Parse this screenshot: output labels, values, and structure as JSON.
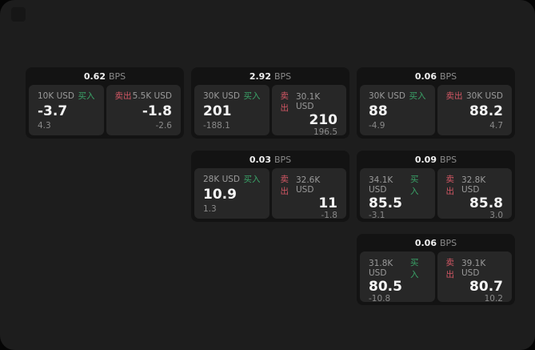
{
  "labels": {
    "bps": "BPS",
    "buy": "买入",
    "sell": "卖出"
  },
  "colors": {
    "window_bg": "#1d1d1d",
    "card_bg": "#131313",
    "panel_bg": "#272727",
    "buy_accent": "#3aa368",
    "sell_accent": "#d25764",
    "primary_text": "#f5f5f5",
    "secondary_text": "#8a8a8a"
  },
  "cards": [
    {
      "bps": "0.62",
      "buy": {
        "notional": "10K USD",
        "price": "-3.7",
        "delta": "4.3"
      },
      "sell": {
        "notional": "5.5K USD",
        "price": "-1.8",
        "delta": "-2.6"
      }
    },
    {
      "bps": "2.92",
      "buy": {
        "notional": "30K USD",
        "price": "201",
        "delta": "-188.1"
      },
      "sell": {
        "notional": "30.1K USD",
        "price": "210",
        "delta": "196.5"
      }
    },
    {
      "bps": "0.06",
      "buy": {
        "notional": "30K USD",
        "price": "88",
        "delta": "-4.9"
      },
      "sell": {
        "notional": "30K USD",
        "price": "88.2",
        "delta": "4.7"
      }
    },
    {
      "bps": "0.03",
      "buy": {
        "notional": "28K USD",
        "price": "10.9",
        "delta": "1.3"
      },
      "sell": {
        "notional": "32.6K USD",
        "price": "11",
        "delta": "-1.8"
      }
    },
    {
      "bps": "0.09",
      "buy": {
        "notional": "34.1K USD",
        "price": "85.5",
        "delta": "-3.1"
      },
      "sell": {
        "notional": "32.8K USD",
        "price": "85.8",
        "delta": "3.0"
      }
    },
    {
      "bps": "0.06",
      "buy": {
        "notional": "31.8K USD",
        "price": "80.5",
        "delta": "-10.8"
      },
      "sell": {
        "notional": "39.1K USD",
        "price": "80.7",
        "delta": "10.2"
      }
    }
  ]
}
